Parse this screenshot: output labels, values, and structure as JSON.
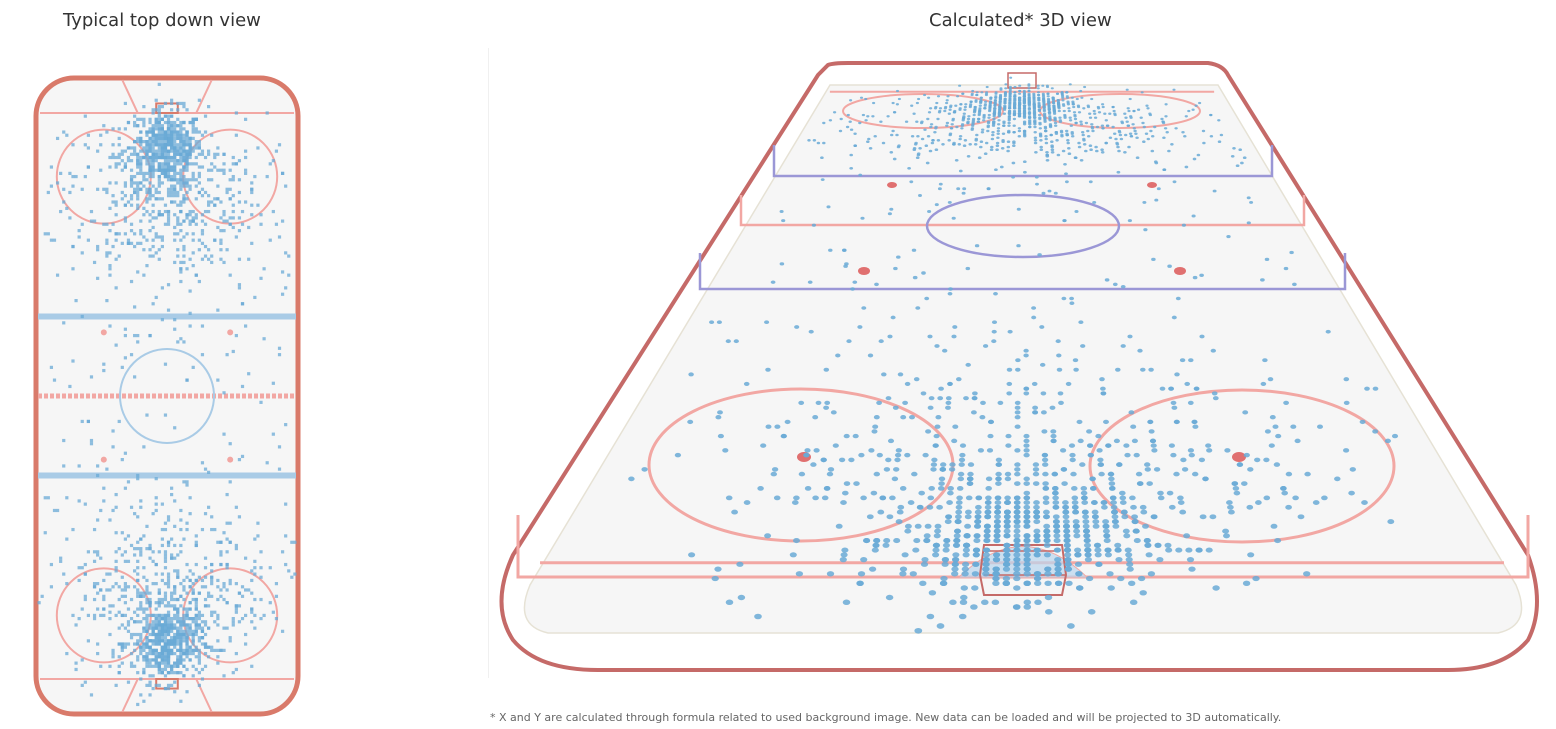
{
  "titles": {
    "left": "Typical top down view",
    "right": "Calculated* 3D view"
  },
  "footnote": "* X and Y are calculated through formula related to used background image. New data can be loaded and will be projected to 3D automatically.",
  "colors": {
    "board": "#d97a6a",
    "board_3d": "#c56a68",
    "red_line": "#f2a7a3",
    "blue_line": "#a9cbe6",
    "blue_line_3d": "#9b97d6",
    "shot": "#6aaad6",
    "ice": "#f6f6f6",
    "faceoff_dot": "#e07070"
  },
  "chart_data": [
    {
      "type": "scatter",
      "view": "top-down",
      "title": "Typical top down view",
      "marker": "small square",
      "x_range": [
        0,
        85
      ],
      "y_range": [
        0,
        200
      ],
      "note": "dense shot locations clustered in front of both nets (slot) and in the faceoff circles; sparse shots in the neutral zone",
      "density_clusters": [
        {
          "zone": "top slot",
          "x_center": 42.5,
          "y_center": 178,
          "relative_density": "very high"
        },
        {
          "zone": "top faceoff circles",
          "x_center": 42.5,
          "y_center": 165,
          "relative_density": "high"
        },
        {
          "zone": "neutral zone",
          "x_center": 42.5,
          "y_center": 100,
          "relative_density": "low"
        },
        {
          "zone": "bottom faceoff circles",
          "x_center": 42.5,
          "y_center": 35,
          "relative_density": "high"
        },
        {
          "zone": "bottom slot",
          "x_center": 42.5,
          "y_center": 22,
          "relative_density": "very high"
        }
      ]
    },
    {
      "type": "scatter",
      "view": "3d-perspective",
      "title": "Calculated* 3D view",
      "marker": "small ellipse",
      "x_range": [
        0,
        85
      ],
      "y_range": [
        0,
        200
      ],
      "note": "same shot data projected to a perspective view; near end (bottom) and far end (top) slots are densest"
    }
  ]
}
